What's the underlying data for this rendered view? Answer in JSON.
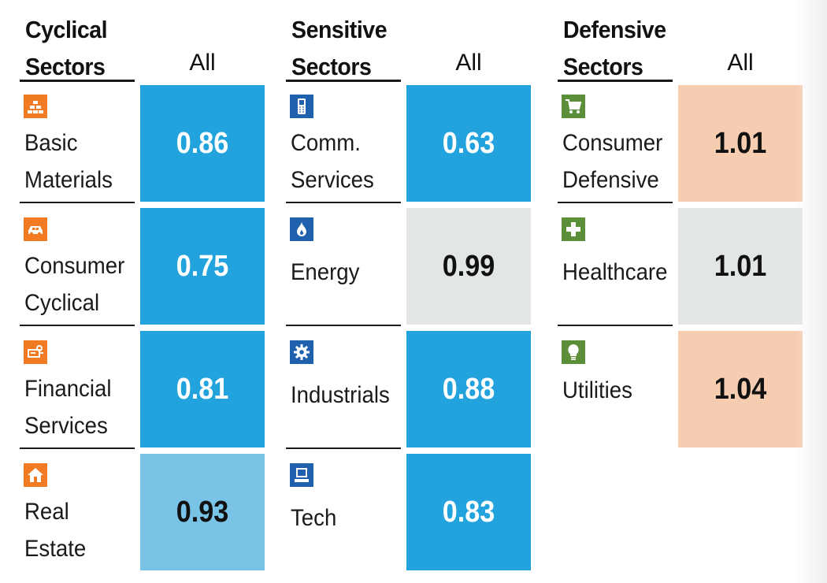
{
  "colors": {
    "strong_blue": "#22a3dd",
    "light_blue": "#79c3e6",
    "neutral_gray": "#e3e6e6",
    "peach": "#f6cdb0",
    "cyclical_icon": "#f07b22",
    "sensitive_icon": "#1f61ad",
    "defensive_icon": "#5c8f3a"
  },
  "groups": [
    {
      "title_line1": "Cyclical",
      "title_line2": "Sectors",
      "col_label": "All",
      "rows": [
        {
          "icon": "gold-bars-icon",
          "line1": "Basic",
          "line2": "Materials",
          "value": "0.86"
        },
        {
          "icon": "car-icon",
          "line1": "Consumer",
          "line2": "Cyclical",
          "value": "0.75"
        },
        {
          "icon": "piggy-bank-icon",
          "line1": "Financial",
          "line2": "Services",
          "value": "0.81"
        },
        {
          "icon": "house-icon",
          "line1": "Real",
          "line2": "Estate",
          "value": "0.93"
        }
      ]
    },
    {
      "title_line1": "Sensitive",
      "title_line2": "Sectors",
      "col_label": "All",
      "rows": [
        {
          "icon": "phone-icon",
          "line1": "Comm.",
          "line2": "Services",
          "value": "0.63"
        },
        {
          "icon": "flame-icon",
          "line1": "Energy",
          "line2": "",
          "value": "0.99"
        },
        {
          "icon": "gear-icon",
          "line1": "Industrials",
          "line2": "",
          "value": "0.88"
        },
        {
          "icon": "computer-icon",
          "line1": "Tech",
          "line2": "",
          "value": "0.83"
        }
      ]
    },
    {
      "title_line1": "Defensive",
      "title_line2": "Sectors",
      "col_label": "All",
      "rows": [
        {
          "icon": "shopping-cart-icon",
          "line1": "Consumer",
          "line2": "Defensive",
          "value": "1.01"
        },
        {
          "icon": "medical-cross-icon",
          "line1": "Healthcare",
          "line2": "",
          "value": "1.01"
        },
        {
          "icon": "light-bulb-icon",
          "line1": "Utilities",
          "line2": "",
          "value": "1.04"
        }
      ]
    }
  ]
}
